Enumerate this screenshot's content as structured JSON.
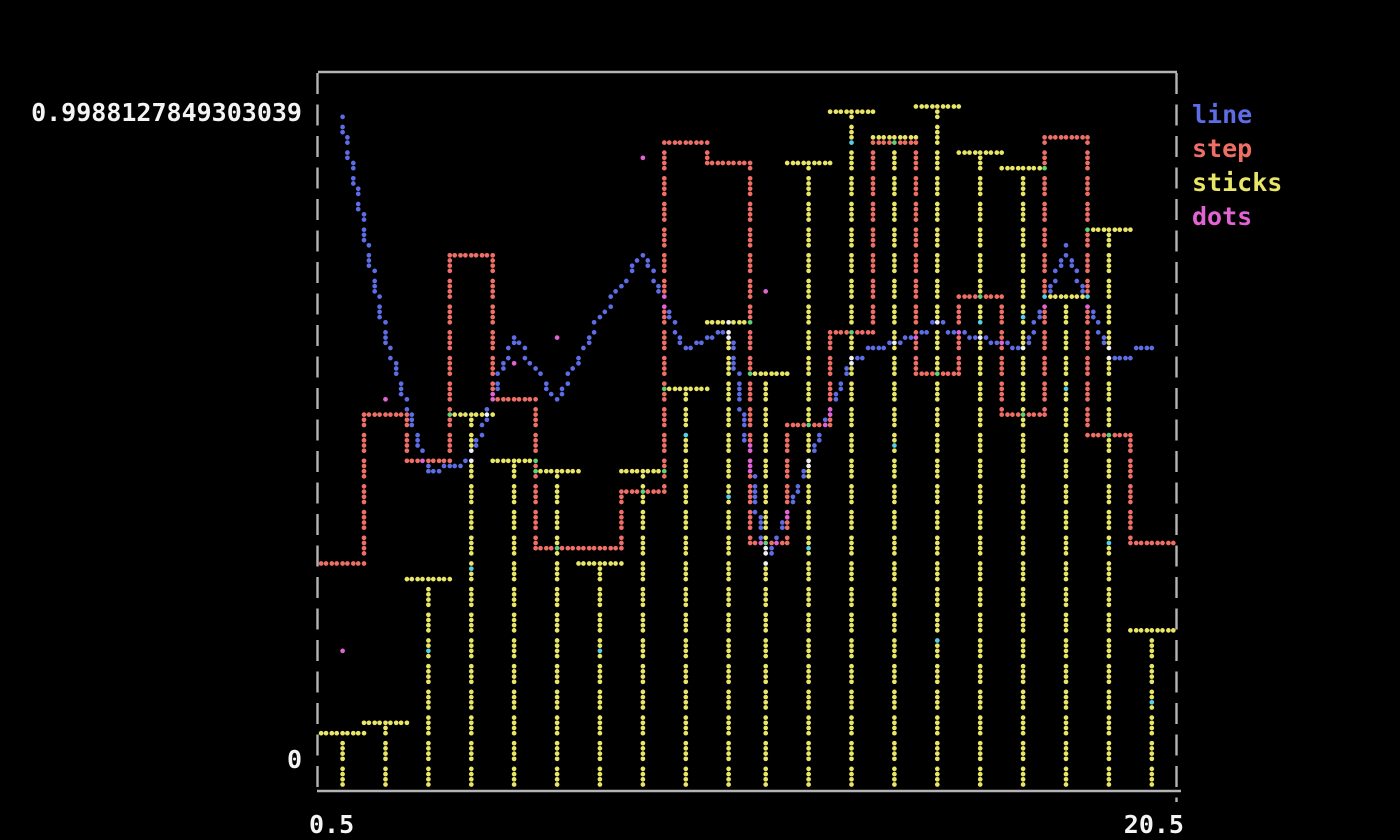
{
  "figure": {
    "background": "#000000",
    "border_color": "#b4b4b4",
    "label_color": "#f4f4f4"
  },
  "axes": {
    "y_max_label": "0.9988127849303039",
    "y_min_label": "0",
    "x_min_label": "0.5",
    "x_max_label": "20.5"
  },
  "legend": {
    "position": "outside-top-right",
    "items": [
      {
        "label": "line",
        "color": "#5d6de6"
      },
      {
        "label": "step",
        "color": "#ef6e65"
      },
      {
        "label": "sticks",
        "color": "#e9e566"
      },
      {
        "label": "dots",
        "color": "#e263d4"
      }
    ]
  },
  "palette": {
    "blend_mode": "xor",
    "colors": {
      "1": "#5d6de6",
      "2": "#63cf77",
      "3": "#55cfe6",
      "4": "#ef6e65",
      "5": "#e263d4",
      "6": "#e9e566",
      "7": "#f0f0f0"
    }
  },
  "chart_data": {
    "type": "mixed",
    "title": "",
    "xlabel": "",
    "ylabel": "",
    "grid": false,
    "xlim": [
      0.5,
      20.5
    ],
    "ylim": [
      0,
      0.9988127849303039
    ],
    "x_tick_labels": [
      "0.5",
      "20.5"
    ],
    "y_tick_labels": [
      "0",
      "0.9988127849303039"
    ],
    "x": [
      1,
      2,
      3,
      4,
      5,
      6,
      7,
      8,
      9,
      10,
      11,
      12,
      13,
      14,
      15,
      16,
      17,
      18,
      19,
      20
    ],
    "series": [
      {
        "name": "line",
        "style": "line",
        "color_bits": 1,
        "values": [
          0.98,
          0.66,
          0.46,
          0.48,
          0.66,
          0.57,
          0.69,
          0.78,
          0.64,
          0.68,
          0.33,
          0.48,
          0.63,
          0.65,
          0.68,
          0.66,
          0.64,
          0.79,
          0.63,
          0.64
        ]
      },
      {
        "name": "step",
        "style": "step",
        "color_bits": 4,
        "values": [
          0.33,
          0.55,
          0.48,
          0.78,
          0.57,
          0.35,
          0.35,
          0.43,
          0.94,
          0.91,
          0.36,
          0.53,
          0.67,
          0.94,
          0.6,
          0.72,
          0.55,
          0.95,
          0.52,
          0.36
        ]
      },
      {
        "name": "sticks",
        "style": "sticks",
        "color_bits": 6,
        "values": [
          0.08,
          0.09,
          0.3,
          0.55,
          0.48,
          0.46,
          0.33,
          0.46,
          0.58,
          0.68,
          0.6,
          0.91,
          0.985,
          0.955,
          0.9988127849303039,
          0.93,
          0.9,
          0.72,
          0.82,
          0.23
        ]
      },
      {
        "name": "dots",
        "style": "dots",
        "color_bits": 5,
        "values": [
          0.2,
          0.57,
          0.2,
          0.32,
          0.62,
          0.66,
          0.2,
          0.92,
          0.52,
          0.42,
          0.73,
          0.35,
          0.94,
          0.5,
          0.22,
          0.68,
          0.69,
          0.58,
          0.36,
          0.12
        ]
      }
    ]
  }
}
